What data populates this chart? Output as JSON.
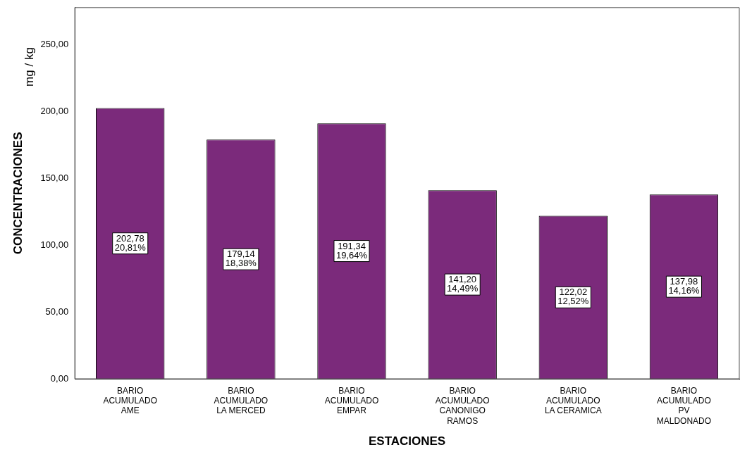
{
  "chart_data": {
    "type": "bar",
    "xlabel": "ESTACIONES",
    "ylabel": "CONCENTRACIONES",
    "annotations": [
      "mg / kg"
    ],
    "categories": [
      "BARIO\nACUMULADO\nAME",
      "BARIO\nACUMULADO\nLA MERCED",
      "BARIO\nACUMULADO\nEMPAR",
      "BARIO\nACUMULADO\nCANONIGO\nRAMOS",
      "BARIO\nACUMULADO\nLA CERAMICA",
      "BARIO\nACUMULADO\nPV\nMALDONADO"
    ],
    "values": [
      202.78,
      179.14,
      191.34,
      141.2,
      122.02,
      137.98
    ],
    "value_labels": [
      "202,78\n20,81%",
      "179,14\n18,38%",
      "191,34\n19,64%",
      "141,20\n14,49%",
      "122,02\n12,52%",
      "137,98\n14,16%"
    ],
    "color": "#7b2a7b",
    "ylim": [
      0,
      278
    ],
    "yticks": [
      {
        "value": 0,
        "label": "0,00"
      },
      {
        "value": 50,
        "label": "50,00"
      },
      {
        "value": 100,
        "label": "100,00"
      },
      {
        "value": 150,
        "label": "150,00"
      },
      {
        "value": 200,
        "label": "200,00"
      },
      {
        "value": 250,
        "label": "250,00"
      }
    ],
    "grid": false,
    "legend": false
  }
}
